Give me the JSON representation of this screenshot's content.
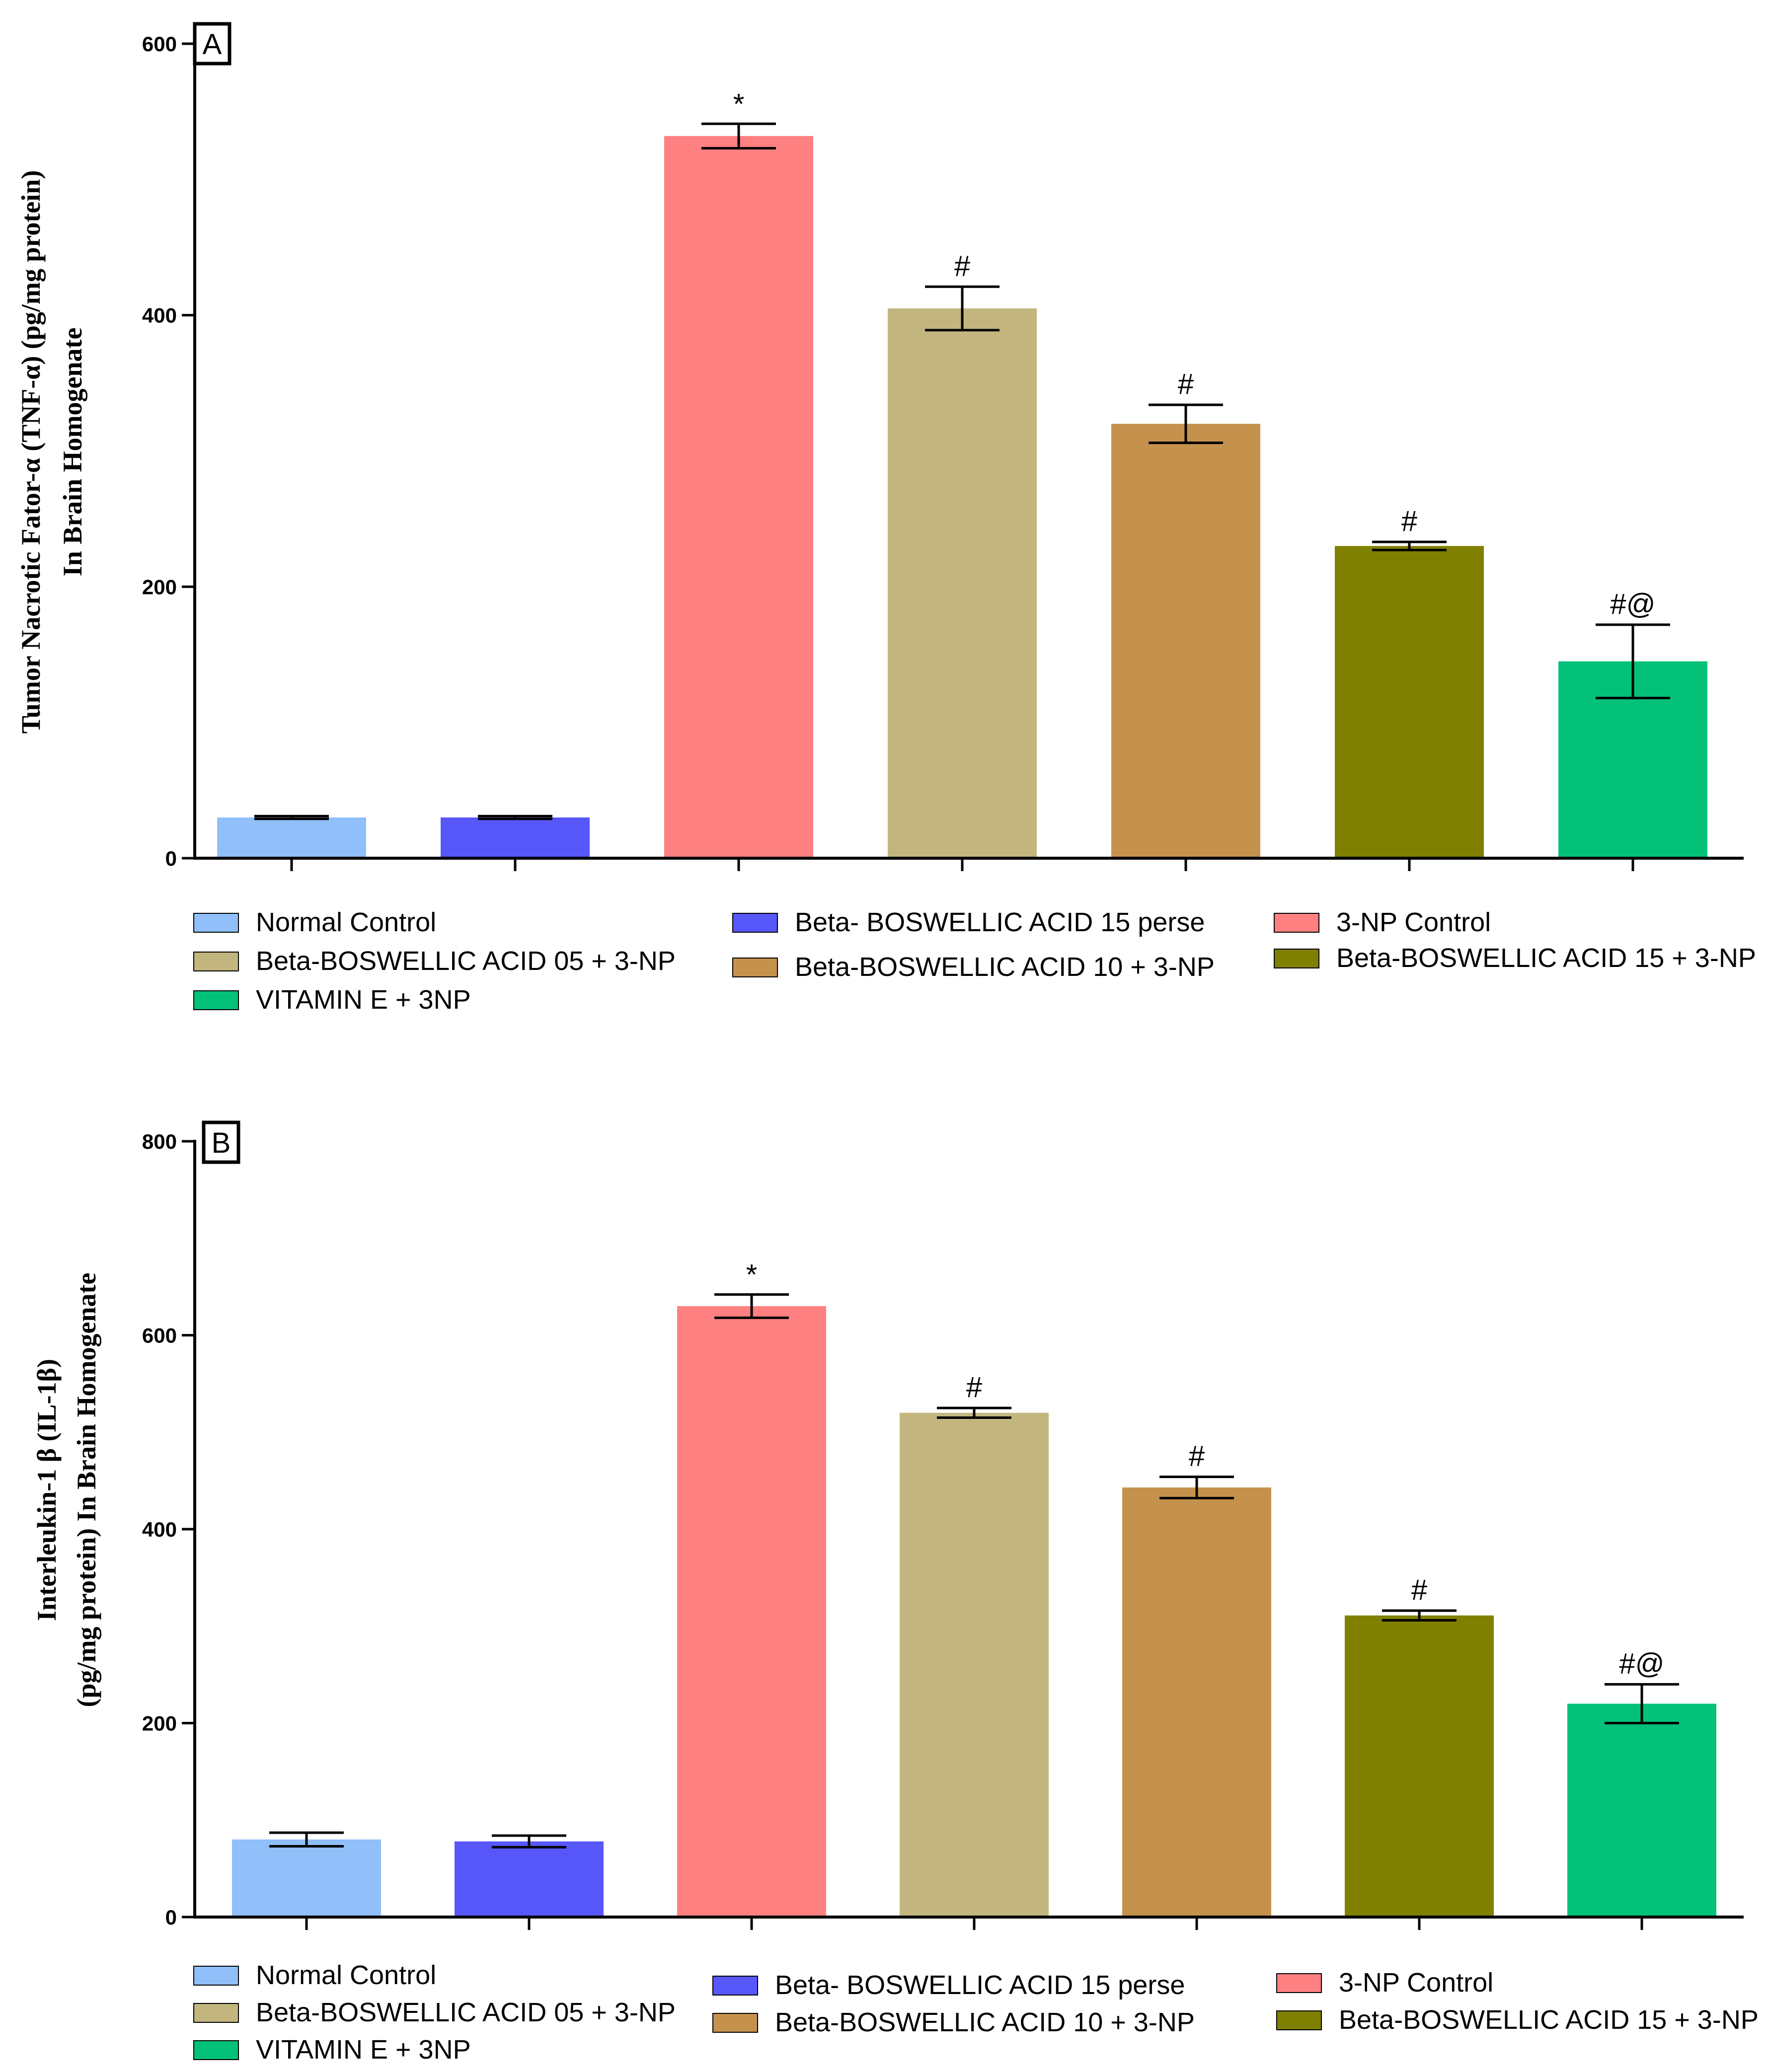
{
  "chart_data": [
    {
      "type": "bar",
      "panel_label": "A",
      "ylabel_lines": [
        "Tumor Nacrotic Fator-α (TNF-α) (pg/mg protein)",
        "In Brain Homogenate"
      ],
      "ylim": [
        0,
        600
      ],
      "yticks": [
        0,
        200,
        400,
        600
      ],
      "categories": [
        "Normal Control",
        "Beta- BOSWELLIC ACID 15 perse",
        "3-NP Control",
        "Beta-BOSWELLIC ACID 05 + 3-NP",
        "Beta-BOSWELLIC ACID 10 + 3-NP",
        "Beta-BOSWELLIC ACID 15 + 3-NP",
        "VITAMIN E + 3NP"
      ],
      "values": [
        30,
        30,
        532,
        405,
        320,
        230,
        145
      ],
      "errors": [
        1,
        1,
        9,
        16,
        14,
        3,
        27
      ],
      "annotations": [
        "",
        "",
        "*",
        "#",
        "#",
        "#",
        "#@"
      ],
      "legend_order": [
        0,
        1,
        2,
        3,
        4,
        5,
        6
      ]
    },
    {
      "type": "bar",
      "panel_label": "B",
      "ylabel_lines": [
        "Interleukin-1 β (IL-1β)",
        "(pg/mg protein) In Brain Homogenate"
      ],
      "ylim": [
        0,
        800
      ],
      "yticks": [
        0,
        200,
        400,
        600,
        800
      ],
      "categories": [
        "Normal Control",
        "Beta- BOSWELLIC ACID 15 perse",
        "3-NP Control",
        "Beta-BOSWELLIC ACID 05 + 3-NP",
        "Beta-BOSWELLIC ACID 10 + 3-NP",
        "Beta-BOSWELLIC ACID 15 + 3-NP",
        "VITAMIN E + 3NP"
      ],
      "values": [
        80,
        78,
        630,
        520,
        443,
        311,
        220
      ],
      "errors": [
        7,
        6,
        12,
        5,
        11,
        5,
        20
      ],
      "annotations": [
        "",
        "",
        "*",
        "#",
        "#",
        "#",
        "#@"
      ],
      "legend_order": [
        0,
        1,
        2,
        3,
        4,
        5,
        6
      ]
    }
  ],
  "colors": [
    "#90bff9",
    "#5757f9",
    "#fe8080",
    "#c2b67e",
    "#c5924e",
    "#808000",
    "#04c17a"
  ]
}
